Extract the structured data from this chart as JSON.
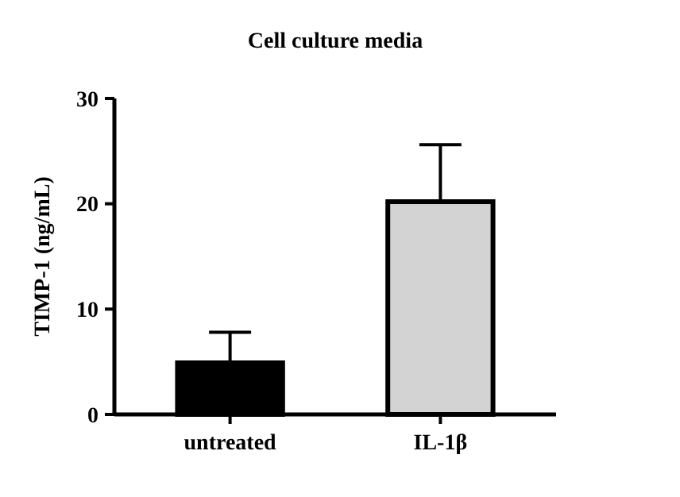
{
  "chart_data": {
    "type": "bar",
    "title": "Cell culture media",
    "ylabel": "TIMP-1 (ng/mL)",
    "categories": [
      "untreated",
      "IL-1β"
    ],
    "values": [
      4.9,
      20.2
    ],
    "colors": [
      "#000000",
      "#d3d3d3"
    ],
    "errors": [
      [
        4.9,
        7.8
      ],
      [
        20.2,
        25.6
      ]
    ],
    "ylim": [
      0,
      30
    ],
    "yticks": [
      0,
      10,
      20,
      30
    ],
    "grid": false
  }
}
